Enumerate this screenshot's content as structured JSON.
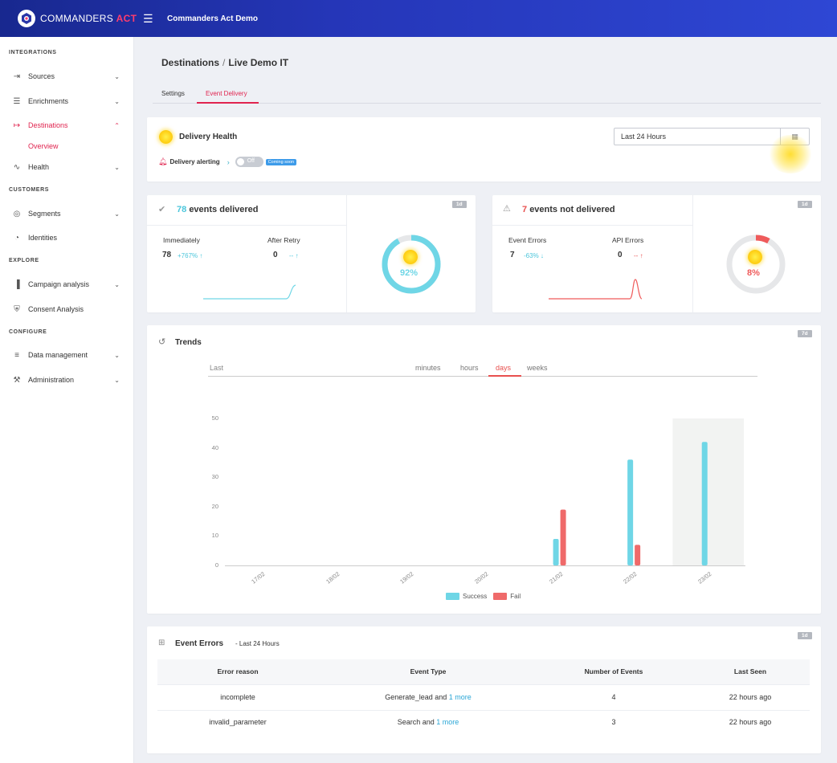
{
  "header": {
    "logo_text_main": "COMMANDERS",
    "logo_text_accent": "ACT",
    "menu_icon": "hamburger-icon",
    "app_title": "Commanders Act Demo"
  },
  "sidebar": {
    "sections": [
      {
        "title": "INTEGRATIONS"
      },
      {
        "title": "CUSTOMERS"
      },
      {
        "title": "EXPLORE"
      },
      {
        "title": "CONFIGURE"
      }
    ],
    "items": [
      {
        "label": "Sources",
        "icon": "sign-in-icon"
      },
      {
        "label": "Enrichments",
        "icon": "layers-icon"
      },
      {
        "label": "Destinations",
        "icon": "sign-out-icon"
      },
      {
        "label": "Health",
        "icon": "pulse-icon"
      },
      {
        "label": "Segments",
        "icon": "target-icon"
      },
      {
        "label": "Identities",
        "icon": "fingerprint-icon"
      },
      {
        "label": "Campaign analysis",
        "icon": "bar-chart-icon"
      },
      {
        "label": "Consent Analysis",
        "icon": "shield-check-icon"
      },
      {
        "label": "Data management",
        "icon": "stack-icon"
      },
      {
        "label": "Administration",
        "icon": "wrench-icon"
      }
    ],
    "sub_item": "Overview"
  },
  "breadcrumb": {
    "parent": "Destinations",
    "sep": "/",
    "current": "Live Demo IT"
  },
  "tabs": [
    {
      "label": "Settings"
    },
    {
      "label": "Event Delivery"
    }
  ],
  "delivery_health": {
    "title": "Delivery Health",
    "date_range": "Last 24 Hours",
    "alerting_label": "Delivery alerting",
    "toggle_label": "Off",
    "coming_soon": "Coming soon"
  },
  "delivered": {
    "badge": "1d",
    "count": "78",
    "label": "events delivered",
    "immediately_label": "Immediately",
    "immediately_value": "78",
    "immediately_delta": "+767%",
    "after_retry_label": "After Retry",
    "after_retry_value": "0",
    "after_retry_delta": "--",
    "percent_text": "92%",
    "percent": 92,
    "color": "#6fd6e6"
  },
  "not_delivered": {
    "badge": "1d",
    "count": "7",
    "label": "events not delivered",
    "event_errors_label": "Event Errors",
    "event_errors_value": "7",
    "event_errors_delta": "-63%",
    "api_errors_label": "API Errors",
    "api_errors_value": "0",
    "api_errors_delta": "--",
    "percent_text": "8%",
    "percent": 8,
    "color": "#ef5b5b"
  },
  "trends": {
    "title": "Trends",
    "badge": "7d",
    "last_label": "Last",
    "ranges": [
      {
        "label": "minutes"
      },
      {
        "label": "hours"
      },
      {
        "label": "days"
      },
      {
        "label": "weeks"
      }
    ]
  },
  "chart_data": {
    "type": "bar",
    "categories": [
      "17/02",
      "18/02",
      "19/02",
      "20/02",
      "21/02",
      "22/02",
      "23/02"
    ],
    "series": [
      {
        "name": "Success",
        "color": "#6fd6e6",
        "values": [
          0,
          0,
          0,
          0,
          9,
          36,
          42
        ]
      },
      {
        "name": "Fail",
        "color": "#ef6a6a",
        "values": [
          0,
          0,
          0,
          0,
          19,
          7,
          0
        ]
      }
    ],
    "yticks": [
      "0",
      "10",
      "20",
      "30",
      "40",
      "50"
    ],
    "ylim": [
      0,
      50
    ],
    "highlight_category": "23/02",
    "legend": "bottom"
  },
  "event_errors": {
    "title": "Event Errors",
    "subtitle": "- Last 24 Hours",
    "badge": "1d",
    "columns": [
      "Error reason",
      "Event Type",
      "Number of Events",
      "Last Seen"
    ],
    "rows": [
      {
        "reason": "incomplete",
        "type": "Generate_lead and",
        "more": "1 more",
        "count": "4",
        "last_seen": "22 hours ago"
      },
      {
        "reason": "invalid_parameter",
        "type": "Search and",
        "more": "1 more",
        "count": "3",
        "last_seen": "22 hours ago"
      }
    ]
  }
}
